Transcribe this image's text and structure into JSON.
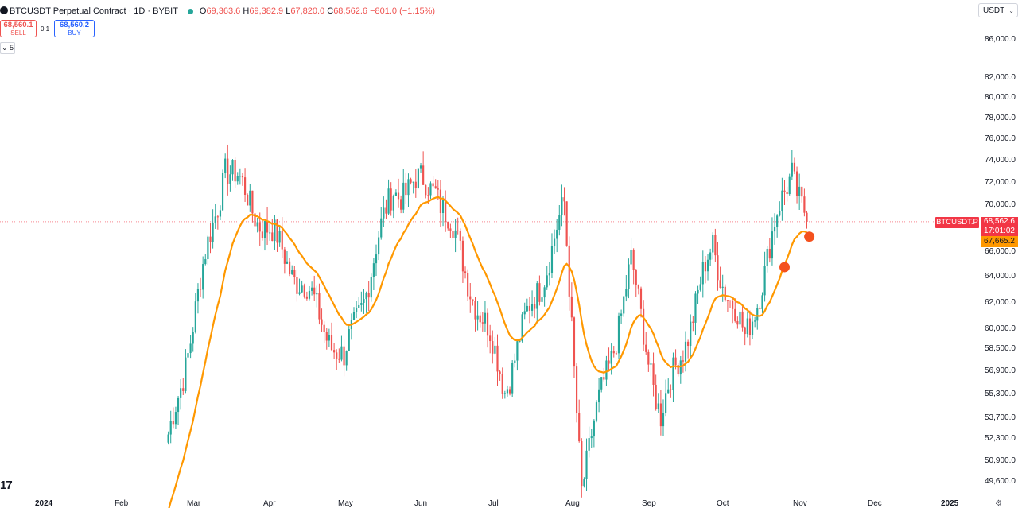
{
  "header": {
    "symbol_title": "BTCUSDT Perpetual Contract · 1D · BYBIT",
    "ohlc": {
      "o_key": "O",
      "o": "69,363.6",
      "h_key": "H",
      "h": "69,382.9",
      "l_key": "L",
      "l": "67,820.0",
      "c_key": "C",
      "c": "68,562.6",
      "change": "−801.0 (−1.15%)"
    },
    "status_color": "#26a69a"
  },
  "trade": {
    "sell_price": "68,560.1",
    "sell_label": "SELL",
    "spread": "0.1",
    "buy_price": "68,560.2",
    "buy_label": "BUY"
  },
  "indicator_toggle": {
    "chevron": "⌄",
    "value": "5"
  },
  "currency_selector": {
    "value": "USDT",
    "chevron": "⌄"
  },
  "price_axis": [
    "86,000.0",
    "82,000.0",
    "80,000.0",
    "78,000.0",
    "76,000.0",
    "74,000.0",
    "72,000.0",
    "70,000.0",
    "66,000.0",
    "64,000.0",
    "62,000.0",
    "60,000.0",
    "58,500.0",
    "56,900.0",
    "55,300.0",
    "53,700.0",
    "52,300.0",
    "50,900.0",
    "49,600.0"
  ],
  "time_axis": [
    {
      "label": "2024",
      "year": true
    },
    {
      "label": "Feb",
      "year": false
    },
    {
      "label": "Mar",
      "year": false
    },
    {
      "label": "Apr",
      "year": false
    },
    {
      "label": "May",
      "year": false
    },
    {
      "label": "Jun",
      "year": false
    },
    {
      "label": "Jul",
      "year": false
    },
    {
      "label": "Aug",
      "year": false
    },
    {
      "label": "Sep",
      "year": false
    },
    {
      "label": "Oct",
      "year": false
    },
    {
      "label": "Nov",
      "year": false
    },
    {
      "label": "Dec",
      "year": false
    },
    {
      "label": "2025",
      "year": true
    }
  ],
  "badges": {
    "symbol": "BTCUSDT.P",
    "last_price": "68,562.6",
    "countdown": "17:01:02",
    "ma_value": "67,665.2"
  },
  "colors": {
    "up": "#26a69a",
    "down": "#ef5350",
    "ma": "#ff9800",
    "marker": "#f4511e",
    "last_price_line": "#f23645"
  },
  "logo": "17",
  "chart_data": {
    "type": "candlestick",
    "title": "",
    "x_range": [
      "2024-01-01",
      "2025-01-01"
    ],
    "y_range": [
      49000,
      88000
    ],
    "log_scale": true,
    "last_price": 68562.6,
    "moving_average": {
      "last_value": 67665.2
    },
    "markers": [
      {
        "date": "2024-10-26",
        "price": 64800
      },
      {
        "date": "2024-11-05",
        "price": 67300
      }
    ],
    "key_prices": [
      {
        "date": "2024-02-20",
        "price": 52000
      },
      {
        "date": "2024-03-14",
        "price": 73700
      },
      {
        "date": "2024-04-14",
        "price": 63500
      },
      {
        "date": "2024-05-01",
        "price": 57500
      },
      {
        "date": "2024-05-21",
        "price": 71400
      },
      {
        "date": "2024-06-07",
        "price": 71900
      },
      {
        "date": "2024-07-05",
        "price": 56000
      },
      {
        "date": "2024-07-29",
        "price": 69500
      },
      {
        "date": "2024-08-05",
        "price": 49600
      },
      {
        "date": "2024-08-25",
        "price": 64800
      },
      {
        "date": "2024-09-06",
        "price": 53700
      },
      {
        "date": "2024-09-27",
        "price": 66400
      },
      {
        "date": "2024-10-10",
        "price": 59000
      },
      {
        "date": "2024-10-29",
        "price": 73600
      },
      {
        "date": "2024-11-04",
        "price": 68562.6
      }
    ]
  }
}
